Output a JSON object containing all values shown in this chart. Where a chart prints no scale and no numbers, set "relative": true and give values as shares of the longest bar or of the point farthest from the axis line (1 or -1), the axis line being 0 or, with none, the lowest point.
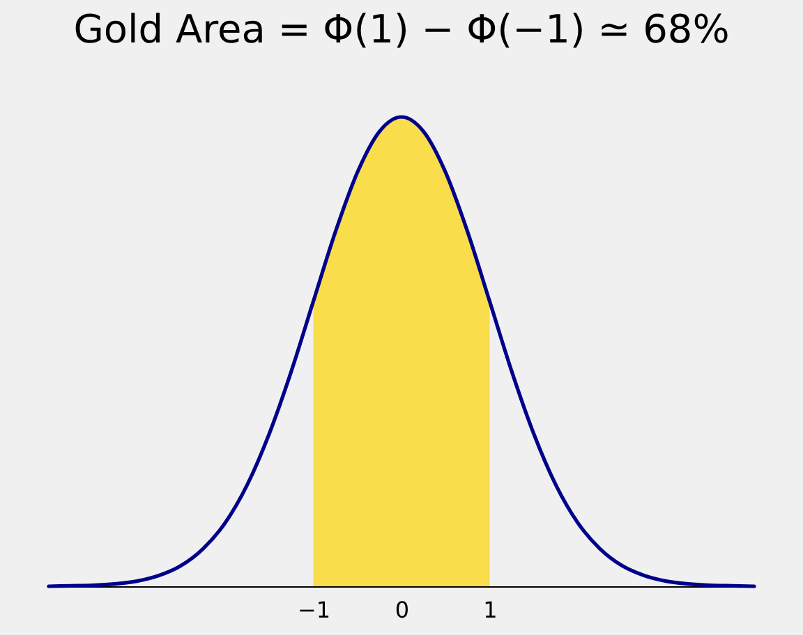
{
  "chart_data": {
    "type": "line",
    "title": "Gold Area = Φ(1) − Φ(−1) ≃ 68%",
    "relative": true,
    "xlim": [
      -4,
      4
    ],
    "xticks": [
      -1,
      0,
      1
    ],
    "series": [
      {
        "type": "area",
        "color": "#f9dd4a",
        "x": [
          -1,
          -0.75,
          -0.5,
          -0.25,
          0,
          0.25,
          0.5,
          0.75,
          1
        ],
        "values": [
          0.607,
          0.755,
          0.882,
          0.969,
          1,
          0.969,
          0.882,
          0.755,
          0.607
        ]
      },
      {
        "color": "#00008b",
        "x": [
          -4,
          -3.75,
          -3.5,
          -3.25,
          -3,
          -2.75,
          -2.5,
          -2.25,
          -2,
          -1.75,
          -1.5,
          -1.25,
          -1,
          -0.75,
          -0.5,
          -0.25,
          0,
          0.25,
          0.5,
          0.75,
          1,
          1.25,
          1.5,
          1.75,
          2,
          2.25,
          2.5,
          2.75,
          3,
          3.25,
          3.5,
          3.75,
          4
        ],
        "values": [
          0.0,
          0.001,
          0.002,
          0.005,
          0.011,
          0.023,
          0.044,
          0.08,
          0.135,
          0.216,
          0.325,
          0.458,
          0.607,
          0.755,
          0.882,
          0.969,
          1,
          0.969,
          0.882,
          0.755,
          0.607,
          0.458,
          0.325,
          0.216,
          0.135,
          0.08,
          0.044,
          0.023,
          0.011,
          0.005,
          0.002,
          0.001,
          0.0
        ]
      }
    ]
  }
}
